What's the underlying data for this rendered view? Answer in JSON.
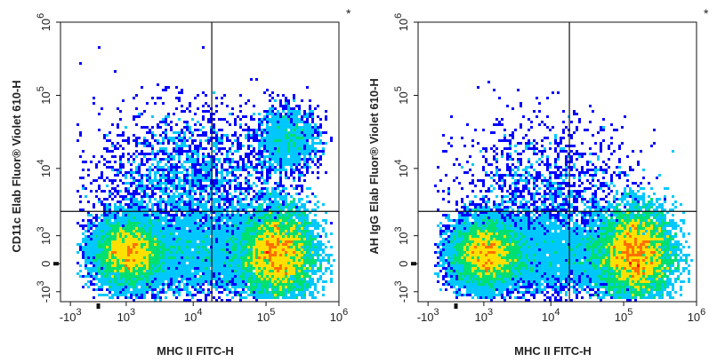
{
  "chart_data": [
    {
      "type": "scatter",
      "subtype": "flow-cytometry-density-dot-plot",
      "title": "",
      "xlabel": "MHC II FITC-H",
      "ylabel": "CD11c Elab Fluor® Violet 610-H",
      "x_scale": "biexponential",
      "y_scale": "biexponential",
      "xlim": [
        -1500,
        1000000
      ],
      "ylim": [
        -1500,
        1000000
      ],
      "x_ticks": [
        {
          "value": -1000,
          "base": "-10",
          "exp": "3"
        },
        {
          "value": 1000,
          "base": "10",
          "exp": "3"
        },
        {
          "value": 10000,
          "base": "10",
          "exp": "4"
        },
        {
          "value": 100000,
          "base": "10",
          "exp": "5"
        },
        {
          "value": 1000000,
          "base": "10",
          "exp": "6"
        }
      ],
      "y_ticks": [
        {
          "value": -1000,
          "base": "-10",
          "exp": "3"
        },
        {
          "value": 0,
          "base": "0",
          "exp": ""
        },
        {
          "value": 1000,
          "base": "10",
          "exp": "3"
        },
        {
          "value": 10000,
          "base": "10",
          "exp": "4"
        },
        {
          "value": 100000,
          "base": "10",
          "exp": "5"
        },
        {
          "value": 1000000,
          "base": "10",
          "exp": "6"
        }
      ],
      "quadrant_gate": {
        "x": 18000,
        "y": 2500
      },
      "corner_mark": "*",
      "color_scale": [
        "#0000ff",
        "#00c8ff",
        "#00e070",
        "#ffe000",
        "#ff7000",
        "#ff0000"
      ],
      "populations": [
        {
          "x_center": 1000,
          "y_center": 350,
          "weight": 0.32
        },
        {
          "x_center": 150000,
          "y_center": 300,
          "weight": 0.52
        },
        {
          "x_center": 200000,
          "y_center": 25000,
          "weight": 0.06
        },
        {
          "x_center": 8000,
          "y_center": 6000,
          "weight": 0.1
        }
      ]
    },
    {
      "type": "scatter",
      "subtype": "flow-cytometry-density-dot-plot",
      "title": "",
      "xlabel": "MHC II FITC-H",
      "ylabel": "AH IgG Elab Fluor® Violet 610-H",
      "x_scale": "biexponential",
      "y_scale": "biexponential",
      "xlim": [
        -1500,
        1000000
      ],
      "ylim": [
        -1500,
        1000000
      ],
      "x_ticks": [
        {
          "value": -1000,
          "base": "-10",
          "exp": "3"
        },
        {
          "value": 1000,
          "base": "10",
          "exp": "3"
        },
        {
          "value": 10000,
          "base": "10",
          "exp": "4"
        },
        {
          "value": 100000,
          "base": "10",
          "exp": "5"
        },
        {
          "value": 1000000,
          "base": "10",
          "exp": "6"
        }
      ],
      "y_ticks": [
        {
          "value": -1000,
          "base": "-10",
          "exp": "3"
        },
        {
          "value": 0,
          "base": "0",
          "exp": ""
        },
        {
          "value": 1000,
          "base": "10",
          "exp": "3"
        },
        {
          "value": 10000,
          "base": "10",
          "exp": "4"
        },
        {
          "value": 100000,
          "base": "10",
          "exp": "5"
        },
        {
          "value": 1000000,
          "base": "10",
          "exp": "6"
        }
      ],
      "quadrant_gate": {
        "x": 18000,
        "y": 2500
      },
      "corner_mark": "*",
      "color_scale": [
        "#0000ff",
        "#00c8ff",
        "#00e070",
        "#ffe000",
        "#ff7000",
        "#ff0000"
      ],
      "populations": [
        {
          "x_center": 1000,
          "y_center": 300,
          "weight": 0.34
        },
        {
          "x_center": 150000,
          "y_center": 300,
          "weight": 0.6
        },
        {
          "x_center": 8000,
          "y_center": 4000,
          "weight": 0.06
        }
      ]
    }
  ]
}
